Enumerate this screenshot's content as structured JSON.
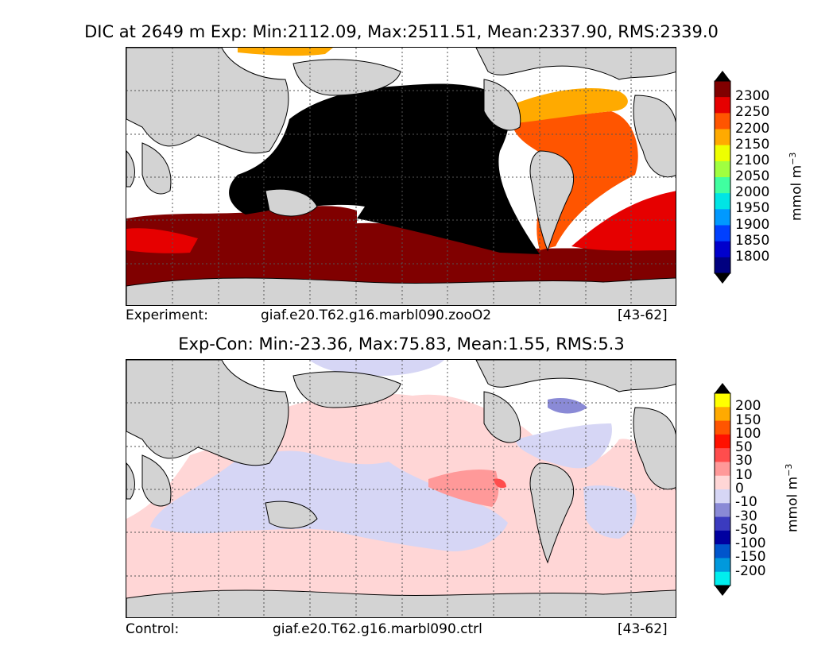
{
  "chart_data": [
    {
      "type": "heatmap",
      "title": "DIC at 2649 m Exp: Min:2112.09, Max:2511.51, Mean:2337.90, RMS:2339.0",
      "footer_left": "Experiment:",
      "footer_case": "giaf.e20.T62.g16.marbl090.zooO2",
      "footer_years": "[43-62]",
      "colorbar_unit": "mmol m",
      "colorbar_unit_exp": "−3",
      "colorbar_ticks": [
        "2300",
        "2250",
        "2200",
        "2150",
        "2100",
        "2050",
        "2000",
        "1950",
        "1900",
        "1850",
        "1800"
      ],
      "colorbar_colors": [
        "#800000",
        "#e60000",
        "#ff5500",
        "#ffaa00",
        "#eeff00",
        "#a0ff40",
        "#40ffa0",
        "#00e5e5",
        "#0099ff",
        "#0040ff",
        "#0000cc",
        "#000080"
      ],
      "colorbar_over": "#000000",
      "colorbar_under": "#000000"
    },
    {
      "type": "heatmap",
      "title": "Exp-Con: Min:-23.36, Max:75.83, Mean:1.55, RMS:5.3",
      "footer_left": "Control:",
      "footer_case": "giaf.e20.T62.g16.marbl090.ctrl",
      "footer_years": "[43-62]",
      "colorbar_unit": "mmol m",
      "colorbar_unit_exp": "−3",
      "colorbar_ticks": [
        "200",
        "150",
        "100",
        "50",
        "30",
        "10",
        "0",
        "-10",
        "-30",
        "-50",
        "-100",
        "-150",
        "-200"
      ],
      "colorbar_colors": [
        "#ffff00",
        "#ffaa00",
        "#ff5500",
        "#ff1100",
        "#ff4d4d",
        "#ff9999",
        "#ffd6d6",
        "#d6d6f5",
        "#8a8ad6",
        "#3b3bbf",
        "#0000a0",
        "#0055cc",
        "#0099dd",
        "#00eeee"
      ],
      "colorbar_over": "#000000",
      "colorbar_under": "#000000"
    }
  ],
  "map_colors": {
    "land": "#d3d3d3",
    "coast": "#000000",
    "missing": "#ffffff",
    "grid": "#555555"
  }
}
